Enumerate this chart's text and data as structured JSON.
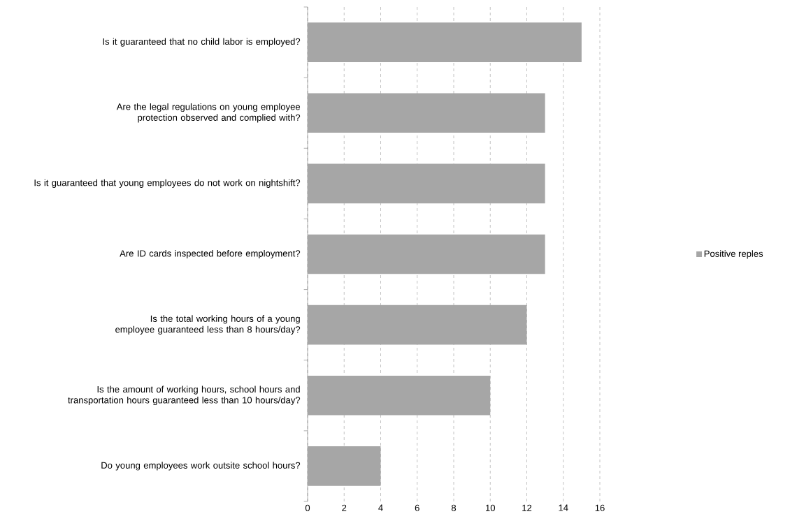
{
  "chart_data": {
    "type": "bar",
    "orientation": "horizontal",
    "categories": [
      "Is it guaranteed that no child labor is employed?",
      "Are the legal regulations on young employee protection observed and complied with?",
      "Is it guaranteed that young employees do not work on nightshift?",
      "Are ID cards inspected before employment?",
      "Is the total working hours of a young employee guaranteed less than 8 hours/day?",
      "Is the amount of working hours, school hours and transportation hours guaranteed less than 10 hours/day?",
      "Do young employees work outsite school hours?"
    ],
    "series": [
      {
        "name": "Positive reples",
        "color": "#a6a6a6",
        "values": [
          15,
          13,
          13,
          13,
          12,
          10,
          4
        ]
      }
    ],
    "xlim": [
      0,
      16
    ],
    "xticks": [
      0,
      2,
      4,
      6,
      8,
      10,
      12,
      14,
      16
    ],
    "grid": "x",
    "legend": "right"
  }
}
